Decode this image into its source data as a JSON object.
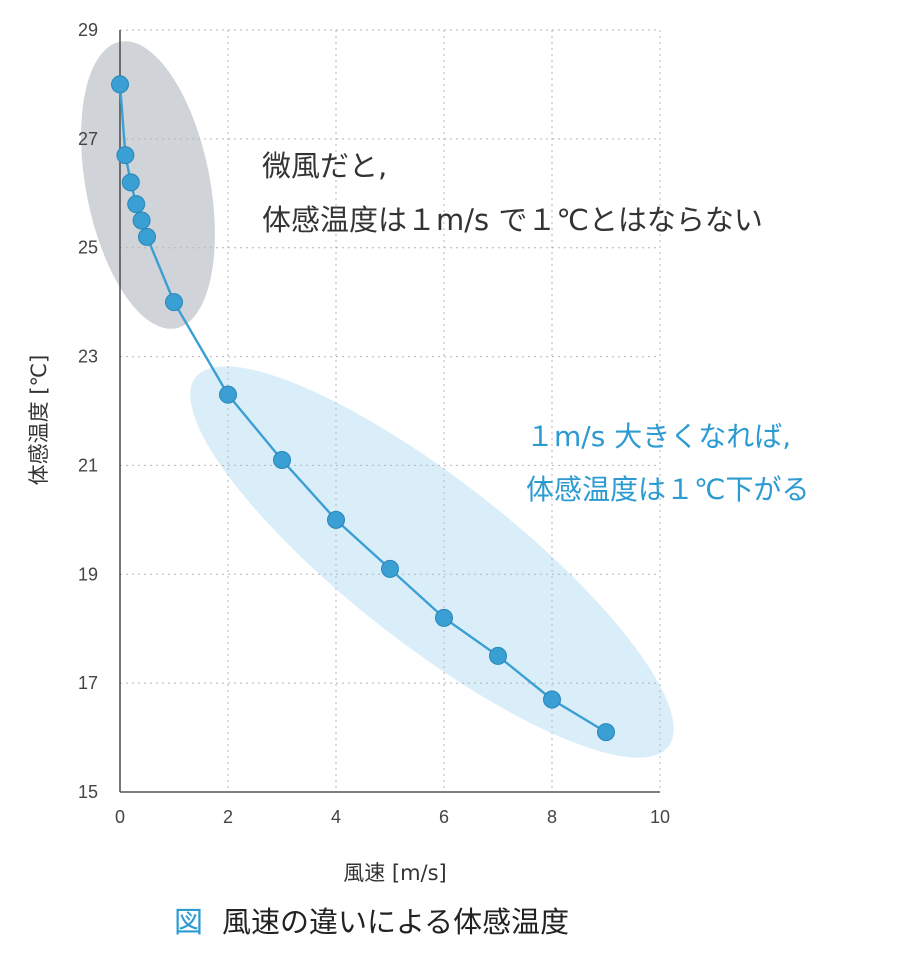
{
  "chart_data": {
    "type": "line",
    "xlabel": "風速 [m/s]",
    "ylabel": "体感温度 [℃]",
    "xlim": [
      0,
      10
    ],
    "ylim": [
      15,
      29
    ],
    "x_ticks": [
      0,
      2,
      4,
      6,
      8,
      10
    ],
    "y_ticks": [
      15,
      17,
      19,
      21,
      23,
      25,
      27,
      29
    ],
    "grid": true,
    "series": [
      {
        "color": "#3a9fd3",
        "points": [
          {
            "x": 0,
            "y": 28.0
          },
          {
            "x": 0.1,
            "y": 26.7
          },
          {
            "x": 0.2,
            "y": 26.2
          },
          {
            "x": 0.3,
            "y": 25.8
          },
          {
            "x": 0.4,
            "y": 25.5
          },
          {
            "x": 0.5,
            "y": 25.2
          },
          {
            "x": 1,
            "y": 24.0
          },
          {
            "x": 2,
            "y": 22.3
          },
          {
            "x": 3,
            "y": 21.1
          },
          {
            "x": 4,
            "y": 20.0
          },
          {
            "x": 5,
            "y": 19.1
          },
          {
            "x": 6,
            "y": 18.2
          },
          {
            "x": 7,
            "y": 17.5
          },
          {
            "x": 8,
            "y": 16.7
          },
          {
            "x": 9,
            "y": 16.1
          }
        ]
      }
    ],
    "annotations": {
      "gray_line1": "微風だと,",
      "gray_line2": "体感温度は１m/s で１℃とはならない",
      "blue_line1": "１m/s 大きくなれば,",
      "blue_line2": "体感温度は１℃下がる"
    },
    "highlight_colors": {
      "gray": "#c8ccd2",
      "blue": "#d6ecf8"
    }
  },
  "caption": {
    "mark": "図",
    "text": "風速の違いによる体感温度"
  }
}
